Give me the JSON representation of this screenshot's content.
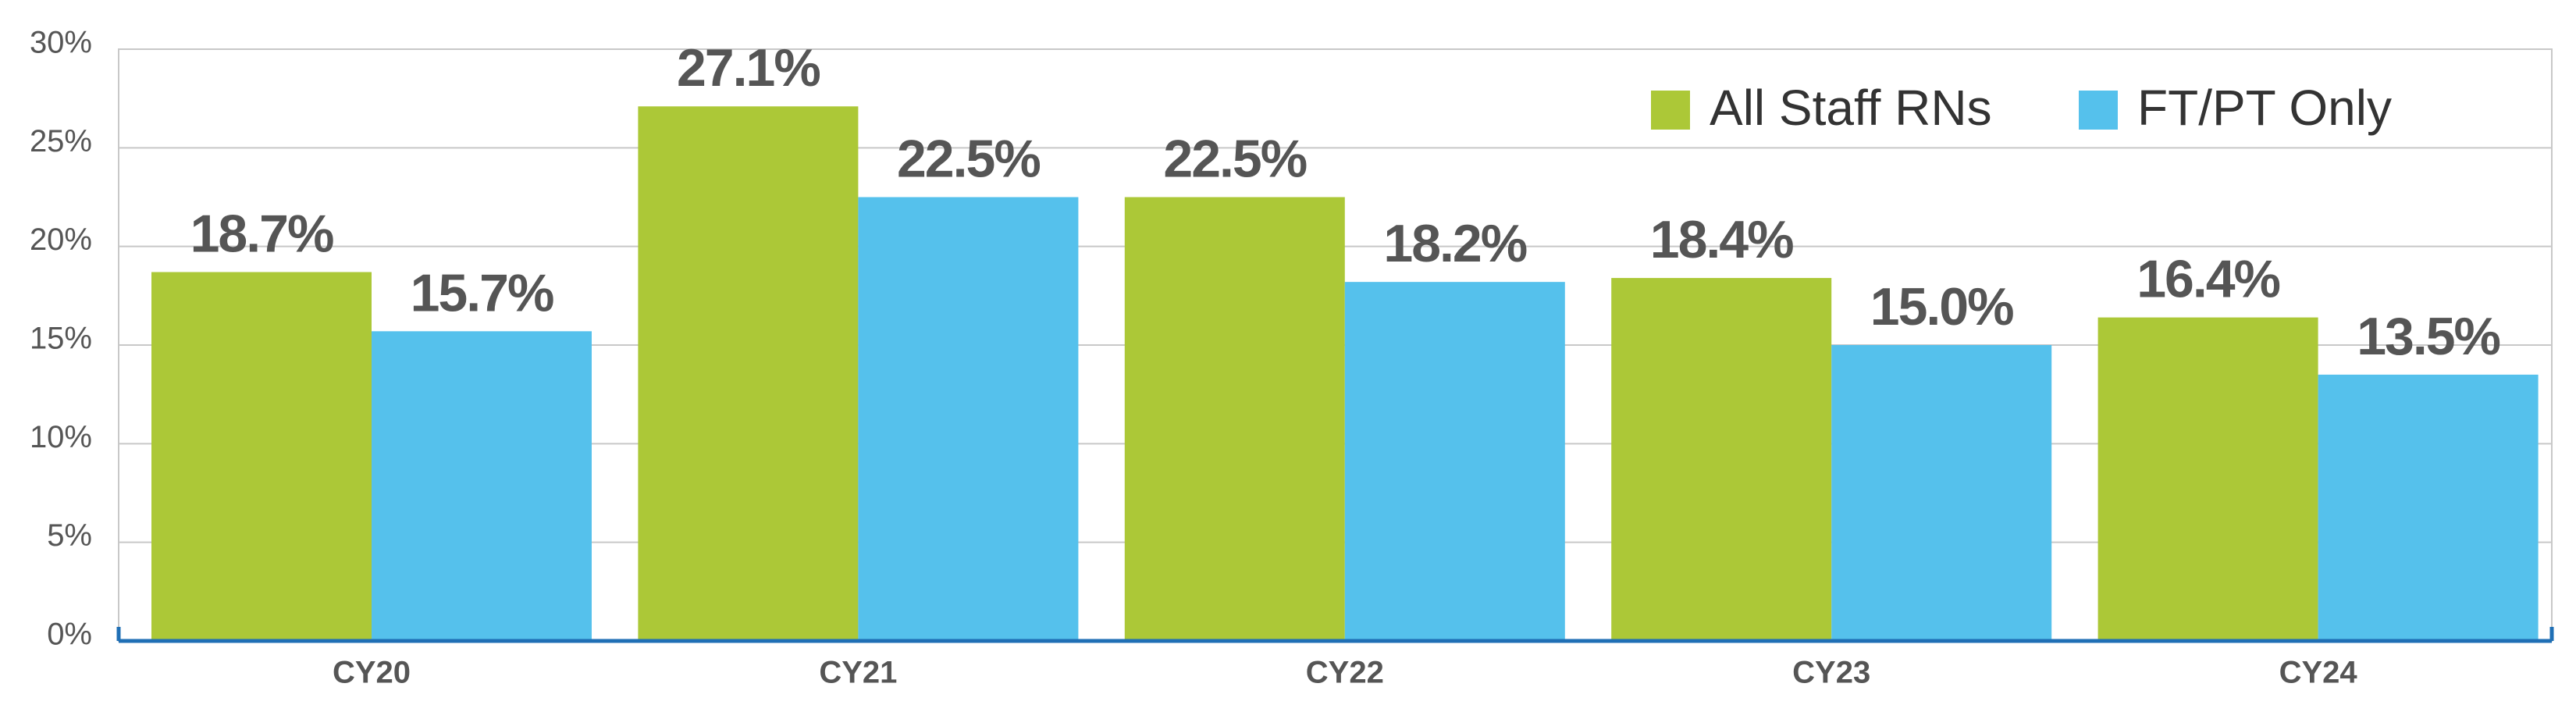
{
  "chart_data": {
    "type": "bar",
    "categories": [
      "CY20",
      "CY21",
      "CY22",
      "CY23",
      "CY24"
    ],
    "series": [
      {
        "name": "All Staff RNs",
        "color": "#acc837",
        "values": [
          18.7,
          27.1,
          22.5,
          18.4,
          16.4
        ],
        "value_labels": [
          "18.7%",
          "27.1%",
          "22.5%",
          "18.4%",
          "16.4%"
        ]
      },
      {
        "name": "FT/PT Only",
        "color": "#55c1ec",
        "values": [
          15.7,
          22.5,
          18.2,
          15.0,
          13.5
        ],
        "value_labels": [
          "15.7%",
          "22.5%",
          "18.2%",
          "15.0%",
          "13.5%"
        ]
      }
    ],
    "ylim": [
      0,
      30
    ],
    "yticks": [
      {
        "value": 0,
        "label": "0%"
      },
      {
        "value": 5,
        "label": "5%"
      },
      {
        "value": 10,
        "label": "10%"
      },
      {
        "value": 15,
        "label": "15%"
      },
      {
        "value": 20,
        "label": "20%"
      },
      {
        "value": 25,
        "label": "25%"
      },
      {
        "value": 30,
        "label": "30%"
      }
    ],
    "grid": true,
    "legend": "upper-right"
  }
}
